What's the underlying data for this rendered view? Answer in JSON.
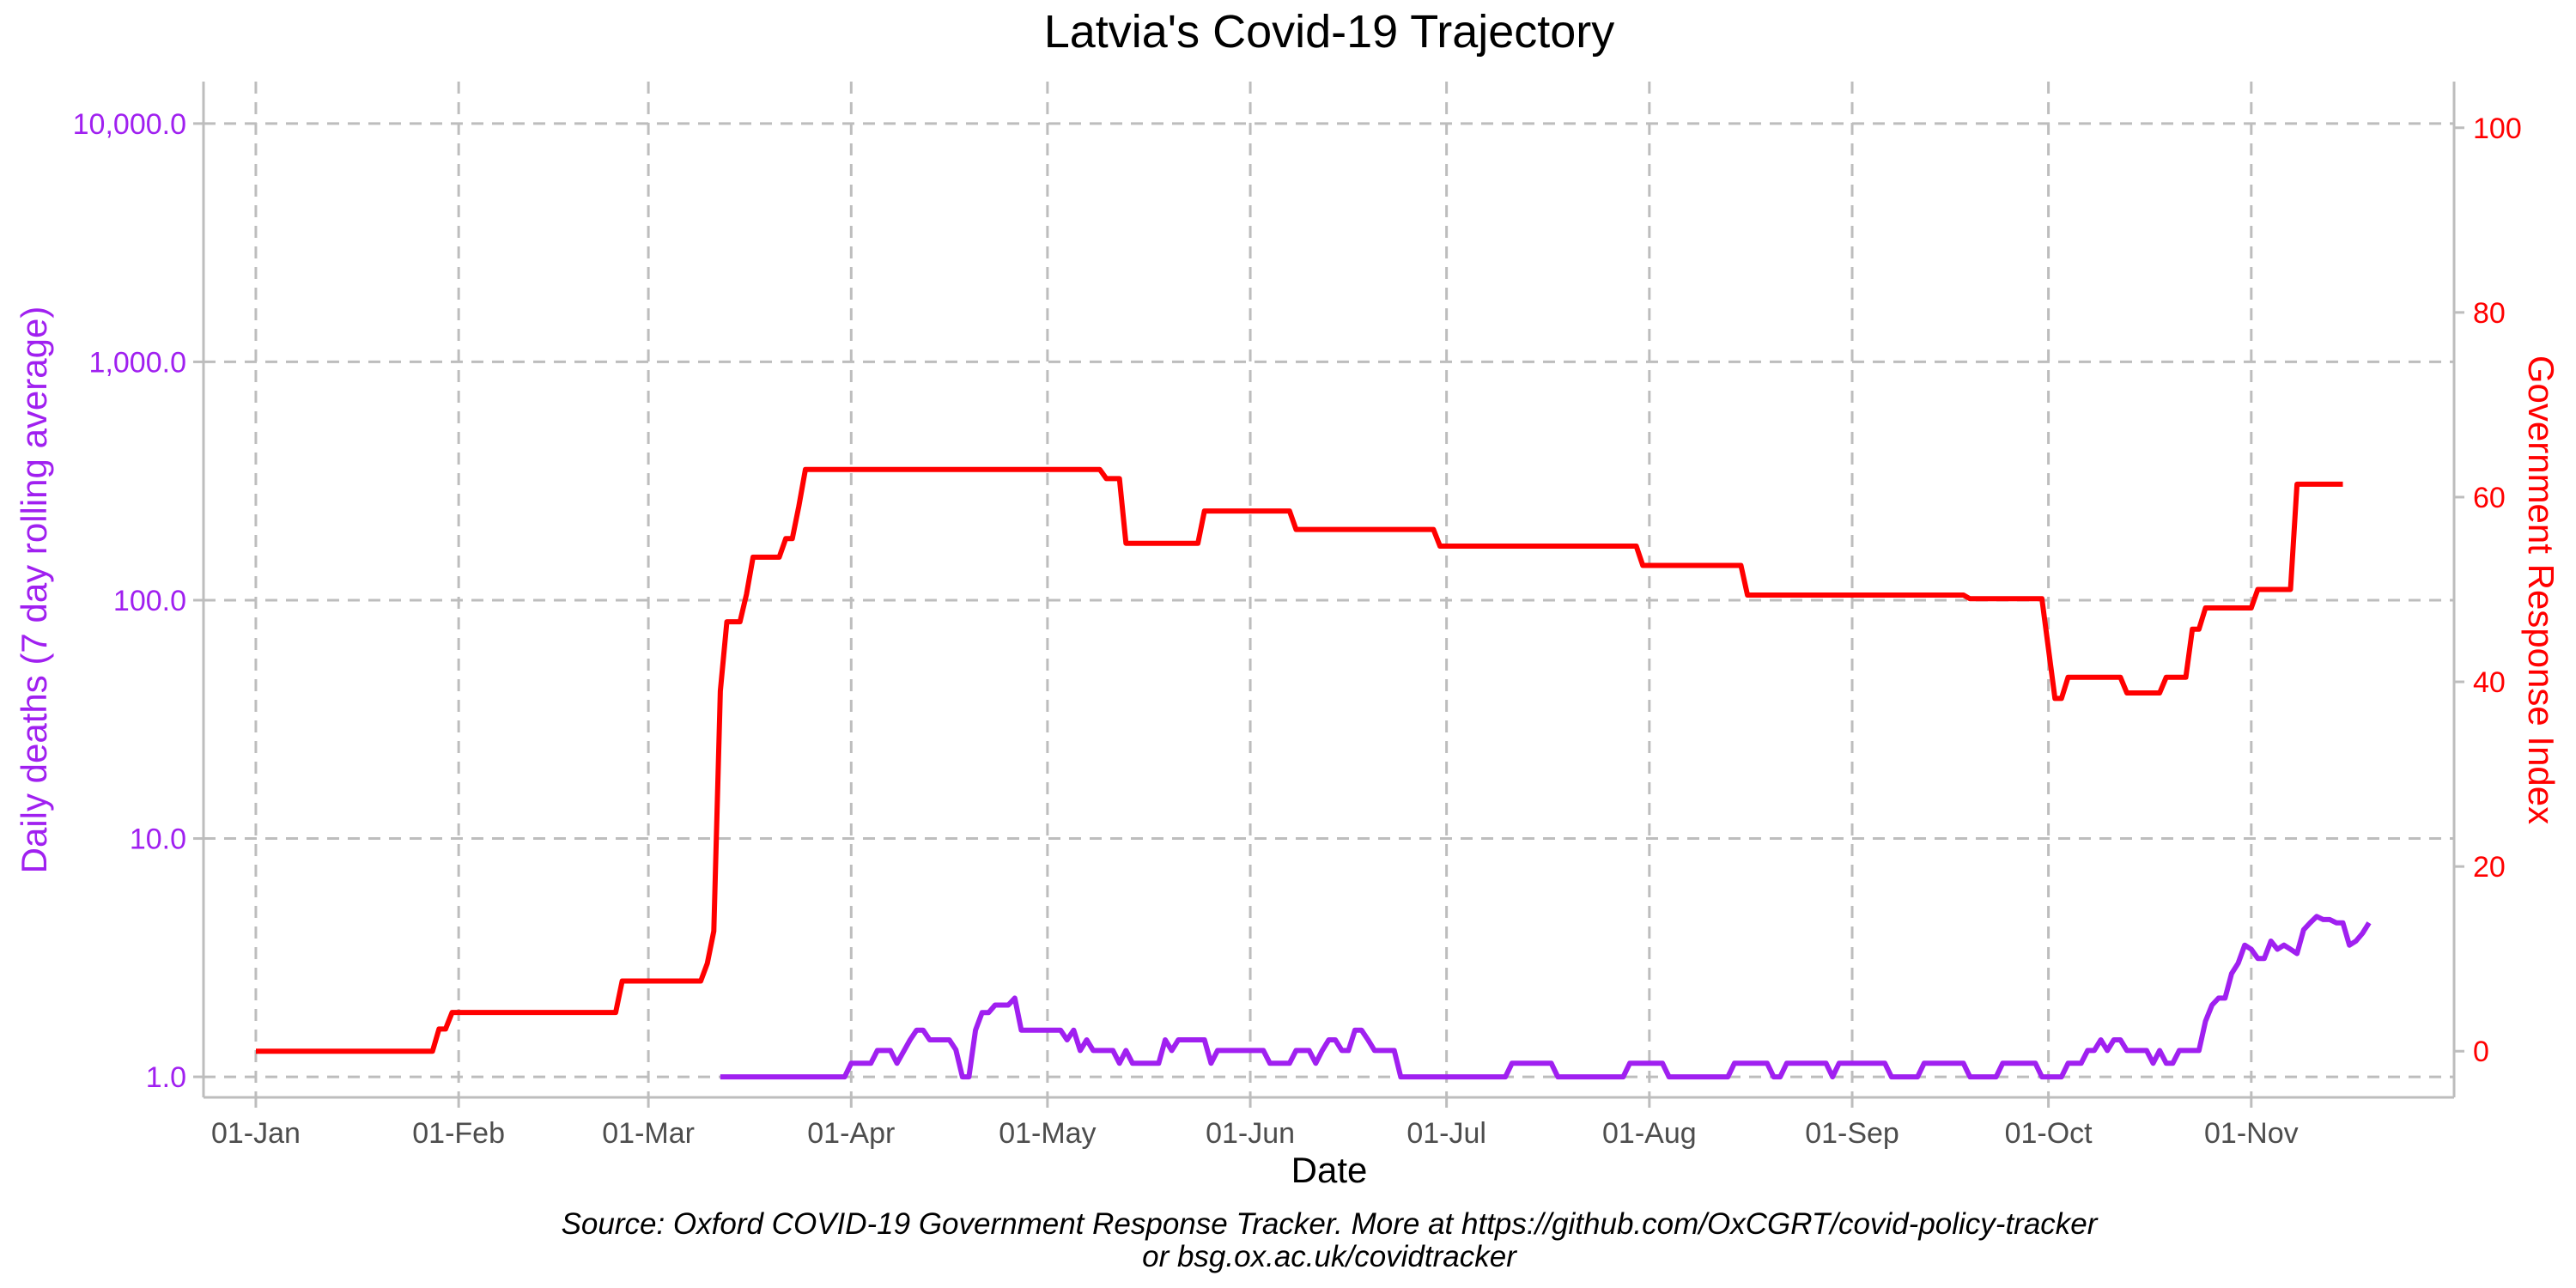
{
  "chart_data": {
    "type": "line",
    "title": "Latvia's Covid-19 Trajectory",
    "xlabel": "Date",
    "ylabel_left": "Daily deaths (7 day rolling average)",
    "ylabel_right": "Government Response Index",
    "source_line1": "Source: Oxford COVID-19 Government Response Tracker. More at https://github.com/OxCGRT/covid-policy-tracker",
    "source_line2": "or bsg.ox.ac.uk/covidtracker",
    "grid": true,
    "colors": {
      "deaths": "#a020f0",
      "index": "#ff0000",
      "grid": "#bdbdbd",
      "text": "#000000"
    },
    "x_axis": {
      "xlim": [
        "2019-12-24",
        "2020-12-02"
      ],
      "tick_dates": [
        "2020-01-01",
        "2020-02-01",
        "2020-03-01",
        "2020-04-01",
        "2020-05-01",
        "2020-06-01",
        "2020-07-01",
        "2020-08-01",
        "2020-09-01",
        "2020-10-01",
        "2020-11-01"
      ],
      "tick_labels": [
        "01-Jan",
        "01-Feb",
        "01-Mar",
        "01-Apr",
        "01-May",
        "01-Jun",
        "01-Jul",
        "01-Aug",
        "01-Sep",
        "01-Oct",
        "01-Nov"
      ]
    },
    "y_left": {
      "scale": "log",
      "ylim": [
        0.82,
        15000
      ],
      "ticks": [
        1,
        10,
        100,
        1000,
        10000
      ],
      "tick_labels": [
        "1.0",
        "10.0",
        "100.0",
        "1,000.0",
        "10,000.0"
      ]
    },
    "y_right": {
      "scale": "linear",
      "ylim": [
        -5,
        105
      ],
      "ticks": [
        0,
        20,
        40,
        60,
        80,
        100
      ],
      "tick_labels": [
        "0",
        "20",
        "40",
        "60",
        "80",
        "100"
      ]
    },
    "series": [
      {
        "name": "Daily deaths (7 day rolling average)",
        "axis": "left",
        "points": [
          [
            "2020-03-12",
            1.0
          ],
          [
            "2020-03-31",
            1.0
          ],
          [
            "2020-04-01",
            1.14
          ],
          [
            "2020-04-04",
            1.14
          ],
          [
            "2020-04-05",
            1.29
          ],
          [
            "2020-04-07",
            1.29
          ],
          [
            "2020-04-08",
            1.14
          ],
          [
            "2020-04-10",
            1.43
          ],
          [
            "2020-04-11",
            1.57
          ],
          [
            "2020-04-12",
            1.57
          ],
          [
            "2020-04-13",
            1.43
          ],
          [
            "2020-04-16",
            1.43
          ],
          [
            "2020-04-17",
            1.3
          ],
          [
            "2020-04-18",
            1.0
          ],
          [
            "2020-04-19",
            1.0
          ],
          [
            "2020-04-20",
            1.57
          ],
          [
            "2020-04-21",
            1.86
          ],
          [
            "2020-04-22",
            1.86
          ],
          [
            "2020-04-23",
            2.0
          ],
          [
            "2020-04-25",
            2.0
          ],
          [
            "2020-04-26",
            2.14
          ],
          [
            "2020-04-27",
            1.57
          ],
          [
            "2020-05-03",
            1.57
          ],
          [
            "2020-05-04",
            1.43
          ],
          [
            "2020-05-05",
            1.57
          ],
          [
            "2020-05-06",
            1.29
          ],
          [
            "2020-05-07",
            1.43
          ],
          [
            "2020-05-08",
            1.29
          ],
          [
            "2020-05-11",
            1.29
          ],
          [
            "2020-05-12",
            1.14
          ],
          [
            "2020-05-13",
            1.29
          ],
          [
            "2020-05-14",
            1.14
          ],
          [
            "2020-05-18",
            1.14
          ],
          [
            "2020-05-19",
            1.43
          ],
          [
            "2020-05-20",
            1.29
          ],
          [
            "2020-05-21",
            1.43
          ],
          [
            "2020-05-25",
            1.43
          ],
          [
            "2020-05-26",
            1.14
          ],
          [
            "2020-05-27",
            1.29
          ],
          [
            "2020-06-03",
            1.29
          ],
          [
            "2020-06-04",
            1.14
          ],
          [
            "2020-06-07",
            1.14
          ],
          [
            "2020-06-08",
            1.29
          ],
          [
            "2020-06-10",
            1.29
          ],
          [
            "2020-06-11",
            1.14
          ],
          [
            "2020-06-12",
            1.29
          ],
          [
            "2020-06-13",
            1.43
          ],
          [
            "2020-06-14",
            1.43
          ],
          [
            "2020-06-15",
            1.29
          ],
          [
            "2020-06-16",
            1.29
          ],
          [
            "2020-06-17",
            1.57
          ],
          [
            "2020-06-18",
            1.57
          ],
          [
            "2020-06-19",
            1.43
          ],
          [
            "2020-06-20",
            1.29
          ],
          [
            "2020-06-23",
            1.29
          ],
          [
            "2020-06-24",
            1.0
          ],
          [
            "2020-07-10",
            1.0
          ],
          [
            "2020-07-11",
            1.14
          ],
          [
            "2020-07-17",
            1.14
          ],
          [
            "2020-07-18",
            1.0
          ],
          [
            "2020-07-28",
            1.0
          ],
          [
            "2020-07-29",
            1.14
          ],
          [
            "2020-08-03",
            1.14
          ],
          [
            "2020-08-04",
            1.0
          ],
          [
            "2020-08-13",
            1.0
          ],
          [
            "2020-08-14",
            1.14
          ],
          [
            "2020-08-19",
            1.14
          ],
          [
            "2020-08-20",
            1.0
          ],
          [
            "2020-08-21",
            1.0
          ],
          [
            "2020-08-22",
            1.14
          ],
          [
            "2020-08-28",
            1.14
          ],
          [
            "2020-08-29",
            1.0
          ],
          [
            "2020-08-30",
            1.14
          ],
          [
            "2020-09-06",
            1.14
          ],
          [
            "2020-09-07",
            1.0
          ],
          [
            "2020-09-11",
            1.0
          ],
          [
            "2020-09-12",
            1.14
          ],
          [
            "2020-09-18",
            1.14
          ],
          [
            "2020-09-19",
            1.0
          ],
          [
            "2020-09-23",
            1.0
          ],
          [
            "2020-09-24",
            1.14
          ],
          [
            "2020-09-29",
            1.14
          ],
          [
            "2020-09-30",
            1.0
          ],
          [
            "2020-10-03",
            1.0
          ],
          [
            "2020-10-04",
            1.14
          ],
          [
            "2020-10-06",
            1.14
          ],
          [
            "2020-10-07",
            1.29
          ],
          [
            "2020-10-08",
            1.29
          ],
          [
            "2020-10-09",
            1.43
          ],
          [
            "2020-10-10",
            1.29
          ],
          [
            "2020-10-11",
            1.43
          ],
          [
            "2020-10-12",
            1.43
          ],
          [
            "2020-10-13",
            1.29
          ],
          [
            "2020-10-16",
            1.29
          ],
          [
            "2020-10-17",
            1.14
          ],
          [
            "2020-10-18",
            1.29
          ],
          [
            "2020-10-19",
            1.14
          ],
          [
            "2020-10-20",
            1.14
          ],
          [
            "2020-10-21",
            1.29
          ],
          [
            "2020-10-24",
            1.29
          ],
          [
            "2020-10-25",
            1.71
          ],
          [
            "2020-10-26",
            2.0
          ],
          [
            "2020-10-27",
            2.14
          ],
          [
            "2020-10-28",
            2.14
          ],
          [
            "2020-10-29",
            2.71
          ],
          [
            "2020-10-30",
            3.0
          ],
          [
            "2020-10-31",
            3.57
          ],
          [
            "2020-11-01",
            3.43
          ],
          [
            "2020-11-02",
            3.14
          ],
          [
            "2020-11-03",
            3.14
          ],
          [
            "2020-11-04",
            3.71
          ],
          [
            "2020-11-05",
            3.43
          ],
          [
            "2020-11-06",
            3.57
          ],
          [
            "2020-11-07",
            3.43
          ],
          [
            "2020-11-08",
            3.29
          ],
          [
            "2020-11-09",
            4.14
          ],
          [
            "2020-11-10",
            4.43
          ],
          [
            "2020-11-11",
            4.71
          ],
          [
            "2020-11-12",
            4.57
          ],
          [
            "2020-11-13",
            4.57
          ],
          [
            "2020-11-14",
            4.43
          ],
          [
            "2020-11-15",
            4.43
          ],
          [
            "2020-11-16",
            3.57
          ],
          [
            "2020-11-17",
            3.71
          ],
          [
            "2020-11-18",
            4.0
          ],
          [
            "2020-11-19",
            4.43
          ]
        ]
      },
      {
        "name": "Government Response Index",
        "axis": "right",
        "points": [
          [
            "2020-01-01",
            0
          ],
          [
            "2020-01-28",
            0
          ],
          [
            "2020-01-29",
            2.4
          ],
          [
            "2020-01-30",
            2.4
          ],
          [
            "2020-01-31",
            4.2
          ],
          [
            "2020-02-25",
            4.2
          ],
          [
            "2020-02-26",
            7.6
          ],
          [
            "2020-03-09",
            7.6
          ],
          [
            "2020-03-10",
            9.5
          ],
          [
            "2020-03-11",
            13
          ],
          [
            "2020-03-12",
            39
          ],
          [
            "2020-03-13",
            46.5
          ],
          [
            "2020-03-15",
            46.5
          ],
          [
            "2020-03-16",
            49.5
          ],
          [
            "2020-03-17",
            53.5
          ],
          [
            "2020-03-21",
            53.5
          ],
          [
            "2020-03-22",
            55.5
          ],
          [
            "2020-03-23",
            55.5
          ],
          [
            "2020-03-24",
            59
          ],
          [
            "2020-03-25",
            63
          ],
          [
            "2020-05-09",
            63
          ],
          [
            "2020-05-10",
            62
          ],
          [
            "2020-05-12",
            62
          ],
          [
            "2020-05-13",
            55
          ],
          [
            "2020-05-24",
            55
          ],
          [
            "2020-05-25",
            58.5
          ],
          [
            "2020-06-07",
            58.5
          ],
          [
            "2020-06-08",
            56.5
          ],
          [
            "2020-06-29",
            56.5
          ],
          [
            "2020-06-30",
            54.7
          ],
          [
            "2020-07-30",
            54.7
          ],
          [
            "2020-07-31",
            52.6
          ],
          [
            "2020-08-15",
            52.6
          ],
          [
            "2020-08-16",
            49.4
          ],
          [
            "2020-09-18",
            49.4
          ],
          [
            "2020-09-19",
            49.0
          ],
          [
            "2020-09-30",
            49.0
          ],
          [
            "2020-10-02",
            38.2
          ],
          [
            "2020-10-03",
            38.2
          ],
          [
            "2020-10-04",
            40.5
          ],
          [
            "2020-10-12",
            40.5
          ],
          [
            "2020-10-13",
            38.8
          ],
          [
            "2020-10-18",
            38.8
          ],
          [
            "2020-10-19",
            40.5
          ],
          [
            "2020-10-22",
            40.5
          ],
          [
            "2020-10-23",
            45.7
          ],
          [
            "2020-10-24",
            45.7
          ],
          [
            "2020-10-25",
            48.0
          ],
          [
            "2020-11-01",
            48.0
          ],
          [
            "2020-11-02",
            50.0
          ],
          [
            "2020-11-07",
            50.0
          ],
          [
            "2020-11-08",
            61.4
          ],
          [
            "2020-11-15",
            61.4
          ]
        ]
      }
    ]
  }
}
